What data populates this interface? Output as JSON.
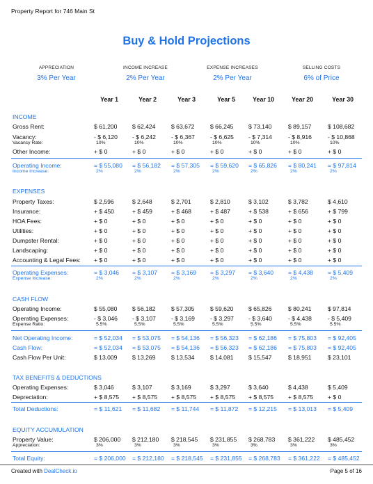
{
  "header": {
    "title": "Property Report for 746 Main St"
  },
  "page_title": "Buy & Hold Projections",
  "summary": [
    {
      "label": "APPRECIATION",
      "value": "3% Per Year"
    },
    {
      "label": "INCOME INCREASE",
      "value": "2% Per Year"
    },
    {
      "label": "EXPENSE INCREASES",
      "value": "2% Per Year"
    },
    {
      "label": "SELLING COSTS",
      "value": "6% of Price"
    }
  ],
  "years": [
    "Year 1",
    "Year 2",
    "Year 3",
    "Year 5",
    "Year 10",
    "Year 20",
    "Year 30"
  ],
  "sections": {
    "income": {
      "title": "INCOME",
      "gross_rent": {
        "label": "Gross Rent:",
        "values": [
          "$ 61,200",
          "$ 62,424",
          "$ 63,672",
          "$ 66,245",
          "$ 73,140",
          "$ 89,157",
          "$ 108,682"
        ]
      },
      "vacancy": {
        "label": "Vacancy:",
        "sublabel": "Vacancy Rate:",
        "values": [
          "- $ 6,120",
          "- $ 6,242",
          "- $ 6,367",
          "- $ 6,625",
          "- $ 7,314",
          "- $ 8,916",
          "- $ 10,868"
        ],
        "subs": [
          "10%",
          "10%",
          "10%",
          "10%",
          "10%",
          "10%",
          "10%"
        ]
      },
      "other_income": {
        "label": "Other Income:",
        "values": [
          "+ $ 0",
          "+ $ 0",
          "+ $ 0",
          "+ $ 0",
          "+ $ 0",
          "+ $ 0",
          "+ $ 0"
        ]
      },
      "operating_income": {
        "label": "Operating Income:",
        "sublabel": "Income Increase:",
        "values": [
          "= $ 55,080",
          "= $ 56,182",
          "= $ 57,305",
          "= $ 59,620",
          "= $ 65,826",
          "= $ 80,241",
          "= $ 97,814"
        ],
        "subs": [
          "2%",
          "2%",
          "2%",
          "2%",
          "2%",
          "2%",
          "2%"
        ]
      }
    },
    "expenses": {
      "title": "EXPENSES",
      "rows": [
        {
          "label": "Property Taxes:",
          "values": [
            "$ 2,596",
            "$ 2,648",
            "$ 2,701",
            "$ 2,810",
            "$ 3,102",
            "$ 3,782",
            "$ 4,610"
          ]
        },
        {
          "label": "Insurance:",
          "values": [
            "+ $ 450",
            "+ $ 459",
            "+ $ 468",
            "+ $ 487",
            "+ $ 538",
            "+ $ 656",
            "+ $ 799"
          ]
        },
        {
          "label": "HOA Fees:",
          "values": [
            "+ $ 0",
            "+ $ 0",
            "+ $ 0",
            "+ $ 0",
            "+ $ 0",
            "+ $ 0",
            "+ $ 0"
          ]
        },
        {
          "label": "Utilities:",
          "values": [
            "+ $ 0",
            "+ $ 0",
            "+ $ 0",
            "+ $ 0",
            "+ $ 0",
            "+ $ 0",
            "+ $ 0"
          ]
        },
        {
          "label": "Dumpster Rental:",
          "values": [
            "+ $ 0",
            "+ $ 0",
            "+ $ 0",
            "+ $ 0",
            "+ $ 0",
            "+ $ 0",
            "+ $ 0"
          ]
        },
        {
          "label": "Landscaping:",
          "values": [
            "+ $ 0",
            "+ $ 0",
            "+ $ 0",
            "+ $ 0",
            "+ $ 0",
            "+ $ 0",
            "+ $ 0"
          ]
        },
        {
          "label": "Accounting & Legal Fees:",
          "values": [
            "+ $ 0",
            "+ $ 0",
            "+ $ 0",
            "+ $ 0",
            "+ $ 0",
            "+ $ 0",
            "+ $ 0"
          ]
        }
      ],
      "operating_expenses": {
        "label": "Operating Expenses:",
        "sublabel": "Expense Increase:",
        "values": [
          "= $ 3,046",
          "= $ 3,107",
          "= $ 3,169",
          "= $ 3,297",
          "= $ 3,640",
          "= $ 4,438",
          "= $ 5,409"
        ],
        "subs": [
          "2%",
          "2%",
          "2%",
          "2%",
          "2%",
          "2%",
          "2%"
        ]
      }
    },
    "cash_flow": {
      "title": "CASH FLOW",
      "operating_income": {
        "label": "Operating Income:",
        "values": [
          "$ 55,080",
          "$ 56,182",
          "$ 57,305",
          "$ 59,620",
          "$ 65,826",
          "$ 80,241",
          "$ 97,814"
        ]
      },
      "operating_expenses": {
        "label": "Operating Expenses:",
        "sublabel": "Expense Ratio:",
        "values": [
          "- $ 3,046",
          "- $ 3,107",
          "- $ 3,169",
          "- $ 3,297",
          "- $ 3,640",
          "- $ 4,438",
          "- $ 5,409"
        ],
        "subs": [
          "5.5%",
          "5.5%",
          "5.5%",
          "5.5%",
          "5.5%",
          "5.5%",
          "5.5%"
        ]
      },
      "net_operating_income": {
        "label": "Net Operating Income:",
        "values": [
          "= $ 52,034",
          "= $ 53,075",
          "= $ 54,136",
          "= $ 56,323",
          "= $ 62,186",
          "= $ 75,803",
          "= $ 92,405"
        ]
      },
      "cash_flow": {
        "label": "Cash Flow:",
        "values": [
          "= $ 52,034",
          "= $ 53,075",
          "= $ 54,136",
          "= $ 56,323",
          "= $ 62,186",
          "= $ 75,803",
          "= $ 92,405"
        ]
      },
      "cash_flow_per_unit": {
        "label": "Cash Flow Per Unit:",
        "values": [
          "$ 13,009",
          "$ 13,269",
          "$ 13,534",
          "$ 14,081",
          "$ 15,547",
          "$ 18,951",
          "$ 23,101"
        ]
      }
    },
    "tax": {
      "title": "TAX BENEFITS & DEDUCTIONS",
      "operating_expenses": {
        "label": "Operating Expenses:",
        "values": [
          "$ 3,046",
          "$ 3,107",
          "$ 3,169",
          "$ 3,297",
          "$ 3,640",
          "$ 4,438",
          "$ 5,409"
        ]
      },
      "depreciation": {
        "label": "Depreciation:",
        "values": [
          "+ $ 8,575",
          "+ $ 8,575",
          "+ $ 8,575",
          "+ $ 8,575",
          "+ $ 8,575",
          "+ $ 8,575",
          "+ $ 0"
        ]
      },
      "total_deductions": {
        "label": "Total Deductions:",
        "values": [
          "= $ 11,621",
          "= $ 11,682",
          "= $ 11,744",
          "= $ 11,872",
          "= $ 12,215",
          "= $ 13,013",
          "= $ 5,409"
        ]
      }
    },
    "equity": {
      "title": "EQUITY ACCUMULATION",
      "property_value": {
        "label": "Property Value:",
        "sublabel": "Appreciation:",
        "values": [
          "$ 206,000",
          "$ 212,180",
          "$ 218,545",
          "$ 231,855",
          "$ 268,783",
          "$ 361,222",
          "$ 485,452"
        ],
        "subs": [
          "3%",
          "3%",
          "3%",
          "3%",
          "3%",
          "3%",
          "3%"
        ]
      },
      "total_equity": {
        "label": "Total Equity:",
        "values": [
          "= $ 206,000",
          "= $ 212,180",
          "= $ 218,545",
          "= $ 231,855",
          "= $ 268,783",
          "= $ 361,222",
          "= $ 485,452"
        ]
      }
    }
  },
  "footer": {
    "created_prefix": "Created with ",
    "brand": "DealCheck.io",
    "page": "Page 5 of 16"
  },
  "colors": {
    "accent": "#1e73e8",
    "text": "#111111"
  }
}
